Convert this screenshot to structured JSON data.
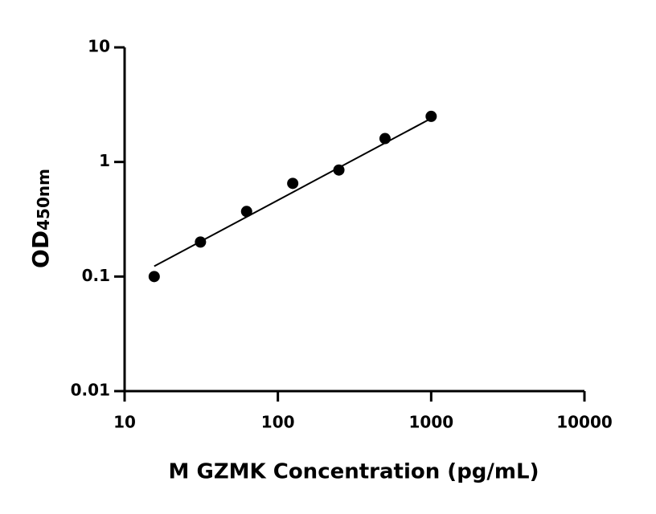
{
  "chart_data": {
    "type": "scatter",
    "x_label": "M GZMK Concentration (pg/mL)",
    "y_label": "OD",
    "y_label_subscript": "450nm",
    "x": [
      15.6,
      31.25,
      62.5,
      125,
      250,
      500,
      1000
    ],
    "values": [
      0.1,
      0.2,
      0.37,
      0.65,
      0.85,
      1.6,
      2.5
    ],
    "color": "#000000",
    "fit_line": {
      "x": [
        15.6,
        1000
      ],
      "values": [
        0.123,
        2.4
      ]
    },
    "xlog": true,
    "ylog": true,
    "xlim": [
      10,
      10000
    ],
    "ylim": [
      0.01,
      10
    ],
    "xticks": [
      10,
      100,
      1000,
      10000
    ],
    "yticks": [
      0.01,
      0.1,
      1,
      10
    ]
  }
}
